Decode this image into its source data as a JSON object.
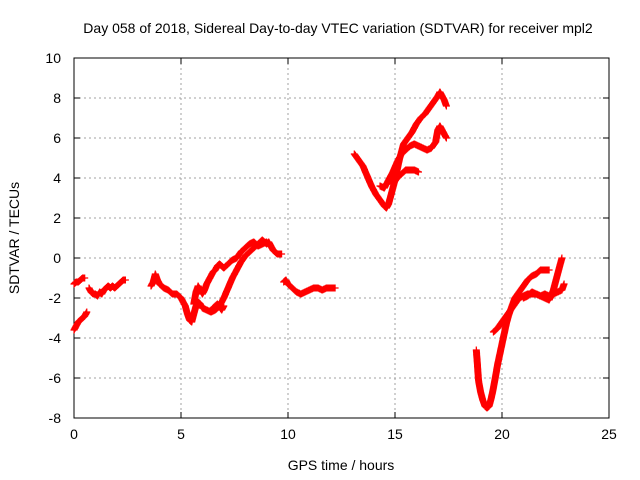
{
  "chart_data": {
    "type": "scatter",
    "title": "Day 058 of 2018, Sidereal Day-to-day VTEC variation (SDTVAR) for receiver mpl2",
    "xlabel": "GPS time / hours",
    "ylabel": "SDTVAR / TECUs",
    "xlim": [
      0,
      25
    ],
    "ylim": [
      -8,
      10
    ],
    "xticks": [
      "0",
      "5",
      "10",
      "15",
      "20",
      "25"
    ],
    "yticks": [
      "-8",
      "-6",
      "-4",
      "-2",
      "0",
      "2",
      "4",
      "6",
      "8",
      "10"
    ],
    "grid": true,
    "marker": "plus",
    "color": "#ff0000",
    "segments": [
      [
        [
          0.0,
          -3.6
        ],
        [
          0.1,
          -3.4
        ],
        [
          0.2,
          -3.2
        ],
        [
          0.3,
          -3.1
        ],
        [
          0.4,
          -3.0
        ],
        [
          0.5,
          -2.9
        ],
        [
          0.6,
          -2.7
        ]
      ],
      [
        [
          0.0,
          -1.3
        ],
        [
          0.1,
          -1.2
        ],
        [
          0.2,
          -1.2
        ],
        [
          0.3,
          -1.1
        ],
        [
          0.4,
          -1.0
        ],
        [
          0.5,
          -1.0
        ]
      ],
      [
        [
          0.7,
          -1.5
        ],
        [
          0.8,
          -1.7
        ],
        [
          0.9,
          -1.8
        ],
        [
          1.0,
          -1.8
        ],
        [
          1.1,
          -1.9
        ],
        [
          1.2,
          -1.7
        ],
        [
          1.3,
          -1.8
        ],
        [
          1.4,
          -1.6
        ],
        [
          1.5,
          -1.5
        ],
        [
          1.6,
          -1.4
        ],
        [
          1.7,
          -1.5
        ],
        [
          1.8,
          -1.4
        ],
        [
          1.9,
          -1.5
        ],
        [
          2.0,
          -1.4
        ],
        [
          2.1,
          -1.3
        ],
        [
          2.2,
          -1.2
        ],
        [
          2.3,
          -1.1
        ],
        [
          2.4,
          -1.1
        ]
      ],
      [
        [
          3.6,
          -1.4
        ],
        [
          3.7,
          -1.2
        ],
        [
          3.8,
          -0.8
        ],
        [
          3.9,
          -1.1
        ],
        [
          4.0,
          -1.3
        ],
        [
          4.2,
          -1.5
        ],
        [
          4.4,
          -1.6
        ],
        [
          4.6,
          -1.8
        ],
        [
          4.8,
          -1.8
        ],
        [
          5.0,
          -2.0
        ],
        [
          5.1,
          -2.2
        ],
        [
          5.2,
          -2.4
        ],
        [
          5.3,
          -2.8
        ],
        [
          5.4,
          -3.1
        ],
        [
          5.5,
          -3.2
        ],
        [
          5.6,
          -2.8
        ],
        [
          5.7,
          -2.4
        ],
        [
          5.8,
          -2.2
        ],
        [
          5.9,
          -2.3
        ],
        [
          6.0,
          -2.5
        ],
        [
          6.2,
          -2.6
        ],
        [
          6.4,
          -2.7
        ],
        [
          6.6,
          -2.6
        ],
        [
          6.8,
          -2.4
        ],
        [
          7.0,
          -2.0
        ],
        [
          7.2,
          -1.5
        ],
        [
          7.4,
          -1.0
        ],
        [
          7.6,
          -0.6
        ],
        [
          7.8,
          -0.2
        ],
        [
          8.0,
          0.1
        ],
        [
          8.2,
          0.3
        ],
        [
          8.4,
          0.5
        ],
        [
          8.6,
          0.7
        ],
        [
          8.8,
          0.9
        ],
        [
          9.0,
          0.7
        ],
        [
          9.1,
          0.8
        ],
        [
          9.2,
          0.6
        ],
        [
          9.3,
          0.4
        ],
        [
          9.4,
          0.3
        ],
        [
          9.5,
          0.2
        ],
        [
          9.6,
          0.2
        ],
        [
          9.7,
          0.2
        ]
      ],
      [
        [
          5.6,
          -2.3
        ],
        [
          5.7,
          -1.7
        ],
        [
          5.8,
          -1.4
        ],
        [
          5.9,
          -1.6
        ],
        [
          6.0,
          -1.8
        ],
        [
          6.1,
          -1.6
        ],
        [
          6.2,
          -1.3
        ],
        [
          6.3,
          -1.1
        ],
        [
          6.4,
          -0.9
        ],
        [
          6.5,
          -0.7
        ],
        [
          6.6,
          -0.6
        ],
        [
          6.7,
          -0.4
        ],
        [
          6.8,
          -0.3
        ],
        [
          6.9,
          -0.4
        ],
        [
          7.0,
          -0.5
        ],
        [
          7.2,
          -0.3
        ],
        [
          7.4,
          -0.1
        ],
        [
          7.6,
          0.0
        ],
        [
          7.8,
          0.3
        ],
        [
          8.0,
          0.5
        ],
        [
          8.2,
          0.7
        ],
        [
          8.4,
          0.8
        ],
        [
          8.6,
          0.6
        ],
        [
          8.8,
          0.7
        ],
        [
          9.0,
          0.8
        ]
      ],
      [
        [
          6.5,
          -2.5
        ],
        [
          6.7,
          -2.3
        ],
        [
          6.9,
          -2.6
        ],
        [
          7.0,
          -2.4
        ]
      ],
      [
        [
          9.8,
          -1.2
        ],
        [
          9.9,
          -1.1
        ],
        [
          10.0,
          -1.3
        ],
        [
          10.2,
          -1.5
        ],
        [
          10.4,
          -1.7
        ],
        [
          10.6,
          -1.8
        ],
        [
          10.8,
          -1.7
        ],
        [
          11.0,
          -1.6
        ],
        [
          11.2,
          -1.5
        ],
        [
          11.4,
          -1.5
        ],
        [
          11.6,
          -1.6
        ],
        [
          11.8,
          -1.5
        ],
        [
          12.0,
          -1.5
        ],
        [
          12.2,
          -1.5
        ]
      ],
      [
        [
          13.1,
          5.2
        ],
        [
          13.3,
          4.9
        ],
        [
          13.5,
          4.6
        ],
        [
          13.7,
          4.1
        ],
        [
          13.9,
          3.6
        ],
        [
          14.1,
          3.2
        ],
        [
          14.3,
          2.9
        ],
        [
          14.5,
          2.6
        ],
        [
          14.6,
          2.5
        ],
        [
          14.7,
          2.7
        ],
        [
          14.8,
          3.1
        ],
        [
          14.9,
          3.5
        ],
        [
          15.0,
          3.9
        ],
        [
          15.1,
          4.4
        ],
        [
          15.2,
          4.9
        ],
        [
          15.3,
          5.3
        ],
        [
          15.4,
          5.7
        ],
        [
          15.6,
          6.0
        ],
        [
          15.8,
          6.3
        ],
        [
          16.0,
          6.7
        ],
        [
          16.2,
          7.0
        ],
        [
          16.4,
          7.2
        ],
        [
          16.6,
          7.5
        ],
        [
          16.8,
          7.8
        ],
        [
          17.0,
          8.1
        ],
        [
          17.1,
          8.3
        ],
        [
          17.2,
          8.1
        ],
        [
          17.3,
          7.9
        ],
        [
          17.4,
          7.6
        ]
      ],
      [
        [
          14.3,
          3.6
        ],
        [
          14.5,
          3.5
        ],
        [
          14.7,
          3.9
        ],
        [
          14.9,
          4.3
        ],
        [
          15.1,
          4.8
        ],
        [
          15.3,
          5.2
        ],
        [
          15.5,
          5.4
        ],
        [
          15.7,
          5.6
        ],
        [
          15.9,
          5.7
        ],
        [
          16.1,
          5.6
        ],
        [
          16.3,
          5.5
        ],
        [
          16.5,
          5.4
        ],
        [
          16.7,
          5.5
        ],
        [
          16.9,
          5.8
        ],
        [
          17.0,
          6.4
        ],
        [
          17.1,
          6.6
        ],
        [
          17.2,
          6.4
        ],
        [
          17.3,
          6.2
        ],
        [
          17.4,
          6.0
        ]
      ],
      [
        [
          14.9,
          3.7
        ],
        [
          15.1,
          4.0
        ],
        [
          15.3,
          4.2
        ],
        [
          15.5,
          4.4
        ],
        [
          15.7,
          4.4
        ],
        [
          15.9,
          4.4
        ],
        [
          16.1,
          4.3
        ]
      ],
      [
        [
          18.8,
          -4.6
        ],
        [
          18.85,
          -5.3
        ],
        [
          18.9,
          -6.1
        ],
        [
          19.0,
          -6.7
        ],
        [
          19.1,
          -7.1
        ],
        [
          19.2,
          -7.4
        ],
        [
          19.3,
          -7.5
        ],
        [
          19.4,
          -7.4
        ],
        [
          19.5,
          -7.0
        ],
        [
          19.6,
          -6.5
        ],
        [
          19.7,
          -5.9
        ],
        [
          19.8,
          -5.3
        ],
        [
          19.9,
          -4.8
        ],
        [
          20.0,
          -4.3
        ],
        [
          20.1,
          -3.8
        ],
        [
          20.2,
          -3.3
        ],
        [
          20.3,
          -2.9
        ],
        [
          20.4,
          -2.6
        ],
        [
          20.5,
          -2.3
        ],
        [
          20.6,
          -2.0
        ],
        [
          20.8,
          -1.7
        ],
        [
          21.0,
          -1.4
        ],
        [
          21.2,
          -1.1
        ],
        [
          21.4,
          -0.9
        ],
        [
          21.6,
          -0.8
        ],
        [
          21.8,
          -0.6
        ],
        [
          22.0,
          -0.6
        ],
        [
          22.2,
          -0.6
        ]
      ],
      [
        [
          19.6,
          -3.7
        ],
        [
          19.8,
          -3.5
        ],
        [
          20.0,
          -3.2
        ],
        [
          20.2,
          -2.9
        ],
        [
          20.4,
          -2.6
        ],
        [
          20.6,
          -2.3
        ],
        [
          20.8,
          -2.0
        ],
        [
          21.0,
          -1.9
        ],
        [
          21.2,
          -1.8
        ],
        [
          21.4,
          -1.8
        ],
        [
          21.6,
          -1.8
        ],
        [
          21.8,
          -1.9
        ],
        [
          22.0,
          -1.8
        ],
        [
          22.2,
          -1.9
        ],
        [
          22.4,
          -1.8
        ],
        [
          22.6,
          -1.7
        ],
        [
          22.8,
          -1.6
        ],
        [
          22.9,
          -1.3
        ]
      ],
      [
        [
          21.0,
          -2.0
        ],
        [
          21.2,
          -1.9
        ],
        [
          21.4,
          -1.7
        ],
        [
          21.6,
          -1.8
        ],
        [
          21.8,
          -1.9
        ],
        [
          22.0,
          -2.0
        ],
        [
          22.2,
          -2.1
        ],
        [
          22.3,
          -1.9
        ],
        [
          22.4,
          -1.6
        ],
        [
          22.5,
          -1.2
        ],
        [
          22.6,
          -0.8
        ],
        [
          22.7,
          -0.4
        ],
        [
          22.8,
          0.0
        ]
      ]
    ]
  }
}
